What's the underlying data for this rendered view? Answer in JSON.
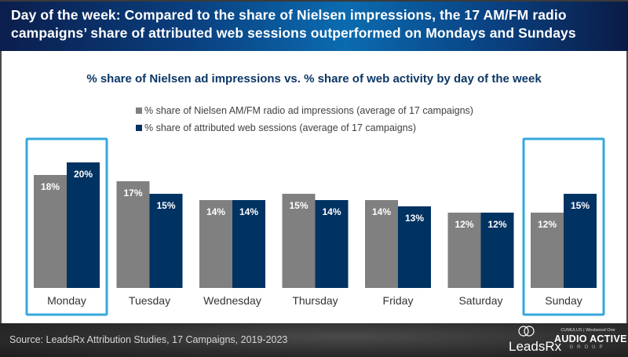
{
  "header": {
    "title": "Day of the week: Compared to the share of Nielsen impressions, the 17 AM/FM radio campaigns’ share of attributed web sessions outperformed on Mondays and Sundays"
  },
  "chart_data": {
    "type": "bar",
    "title": "% share of Nielsen ad impressions vs. % share of web activity by day of the week",
    "xlabel": "",
    "ylabel": "",
    "ylim": [
      0,
      22
    ],
    "grid": false,
    "legend_position": "top-center",
    "categories": [
      "Monday",
      "Tuesday",
      "Wednesday",
      "Thursday",
      "Friday",
      "Saturday",
      "Sunday"
    ],
    "highlighted_categories": [
      "Monday",
      "Sunday"
    ],
    "series": [
      {
        "name": "% share of Nielsen AM/FM radio ad impressions (average of 17 campaigns)",
        "color": "#808080",
        "values": [
          18,
          17,
          14,
          15,
          14,
          12,
          12
        ],
        "labels": [
          "18%",
          "17%",
          "14%",
          "15%",
          "14%",
          "12%",
          "12%"
        ]
      },
      {
        "name": "% share of attributed web sessions (average of 17 campaigns)",
        "color": "#003262",
        "values": [
          20,
          15,
          14,
          14,
          13,
          12,
          15
        ],
        "labels": [
          "20%",
          "15%",
          "14%",
          "14%",
          "13%",
          "12%",
          "15%"
        ]
      }
    ],
    "highlight_color": "#35a8dc"
  },
  "footer": {
    "source": "Source: LeadsRx Attribution Studies, 17 Campaigns, 2019-2023",
    "logo_leadsrx": "LeadsRx",
    "logo_aag_top": "CUMULUS | Westwood One",
    "logo_aag_main": "AUDIO ACTIVE",
    "logo_aag_sub": "GROUP"
  }
}
